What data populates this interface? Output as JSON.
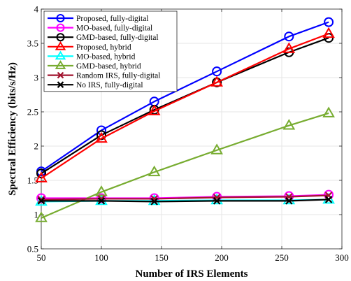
{
  "chart_data": {
    "type": "line",
    "title": "",
    "xlabel": "Number of IRS Elements",
    "ylabel": "Spectral Efficiency (bits/s/Hz)",
    "xlim": [
      50,
      300
    ],
    "ylim": [
      0.5,
      4
    ],
    "xticks": [
      50,
      100,
      150,
      200,
      250,
      300
    ],
    "yticks": [
      0.5,
      1,
      1.5,
      2,
      2.5,
      3,
      3.5,
      4
    ],
    "xtick_labels": [
      "50",
      "100",
      "150",
      "200",
      "250",
      "300"
    ],
    "ytick_labels": [
      "0.5",
      "1",
      "1.5",
      "2",
      "2.5",
      "3",
      "3.5",
      "4"
    ],
    "grid": true,
    "legend_position": "top-left",
    "x": [
      50,
      100,
      144,
      196,
      256,
      289
    ],
    "series": [
      {
        "name": "Proposed, fully-digital",
        "color": "#0000ff",
        "marker": "circle",
        "values": [
          1.63,
          2.23,
          2.65,
          3.09,
          3.6,
          3.81
        ]
      },
      {
        "name": "MO-based, fully-digital",
        "color": "#ff00ff",
        "marker": "circle",
        "values": [
          1.24,
          1.24,
          1.24,
          1.26,
          1.27,
          1.29
        ]
      },
      {
        "name": "GMD-based, fully-digital",
        "color": "#000000",
        "marker": "circle",
        "values": [
          1.6,
          2.16,
          2.53,
          2.93,
          3.37,
          3.58
        ]
      },
      {
        "name": "Proposed, hybrid",
        "color": "#ff0000",
        "marker": "triangle",
        "values": [
          1.53,
          2.11,
          2.51,
          2.93,
          3.42,
          3.64
        ]
      },
      {
        "name": "MO-based, hybrid",
        "color": "#00ffff",
        "marker": "triangle",
        "values": [
          1.19,
          1.2,
          1.2,
          1.21,
          1.21,
          1.22
        ]
      },
      {
        "name": "GMD-based, hybrid",
        "color": "#77ac30",
        "marker": "triangle",
        "values": [
          0.95,
          1.33,
          1.62,
          1.94,
          2.3,
          2.48
        ]
      },
      {
        "name": "Random IRS, fully-digital",
        "color": "#a2142f",
        "marker": "x",
        "values": [
          1.22,
          1.23,
          1.23,
          1.25,
          1.26,
          1.28
        ]
      },
      {
        "name": "No IRS, fully-digital",
        "color": "#000000",
        "marker": "x",
        "values": [
          1.2,
          1.2,
          1.19,
          1.2,
          1.2,
          1.22
        ]
      }
    ]
  }
}
